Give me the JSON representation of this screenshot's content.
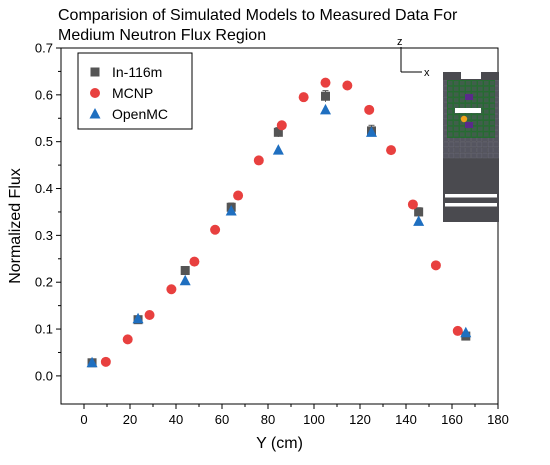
{
  "chart_data": {
    "type": "scatter",
    "title_line1": "Comparision of Simulated Models to Measured Data For",
    "title_line2": "Medium Neutron Flux Region",
    "xlabel": "Y (cm)",
    "ylabel": "Normalized Flux",
    "xlim": [
      -10,
      180
    ],
    "ylim": [
      -0.06,
      0.7
    ],
    "xticks": [
      0,
      20,
      40,
      60,
      80,
      100,
      120,
      140,
      160,
      180
    ],
    "yticks": [
      0.0,
      0.1,
      0.2,
      0.3,
      0.4,
      0.5,
      0.6,
      0.7
    ],
    "legend_position": "top-left",
    "series": [
      {
        "name": "In-116m",
        "marker": "square",
        "color": "#555555",
        "x": [
          3.5,
          23.5,
          44,
          64,
          84.5,
          105,
          125,
          145.5,
          166
        ],
        "y": [
          0.028,
          0.12,
          0.225,
          0.36,
          0.52,
          0.597,
          0.523,
          0.35,
          0.085
        ],
        "error": [
          0.005,
          0.006,
          0.007,
          0.009,
          0.01,
          0.012,
          0.012,
          0.009,
          0.004
        ]
      },
      {
        "name": "MCNP",
        "marker": "circle",
        "color": "#e8403f",
        "x": [
          9.5,
          19,
          28.5,
          38,
          48,
          57,
          67,
          76,
          86,
          95.5,
          105,
          114.5,
          124,
          133.5,
          143,
          153,
          162.5
        ],
        "y": [
          0.03,
          0.078,
          0.13,
          0.185,
          0.244,
          0.312,
          0.385,
          0.46,
          0.535,
          0.595,
          0.626,
          0.62,
          0.568,
          0.482,
          0.366,
          0.236,
          0.096
        ]
      },
      {
        "name": "OpenMC",
        "marker": "triangle",
        "color": "#1f6fc0",
        "x": [
          3.5,
          23.5,
          44,
          64,
          84.5,
          105,
          125,
          145.5,
          166
        ],
        "y": [
          0.028,
          0.122,
          0.203,
          0.352,
          0.482,
          0.568,
          0.52,
          0.33,
          0.092
        ]
      }
    ]
  },
  "inset": {
    "axis_z": "z",
    "axis_x": "x",
    "colors": {
      "frame": "#4a4a4f",
      "cell_dark": "#555560",
      "cell_grid": "#6a6a75",
      "green": "#1f6e2a",
      "white": "#ffffff",
      "purple": "#5a2a8a",
      "marker": "#f2a21b"
    }
  }
}
